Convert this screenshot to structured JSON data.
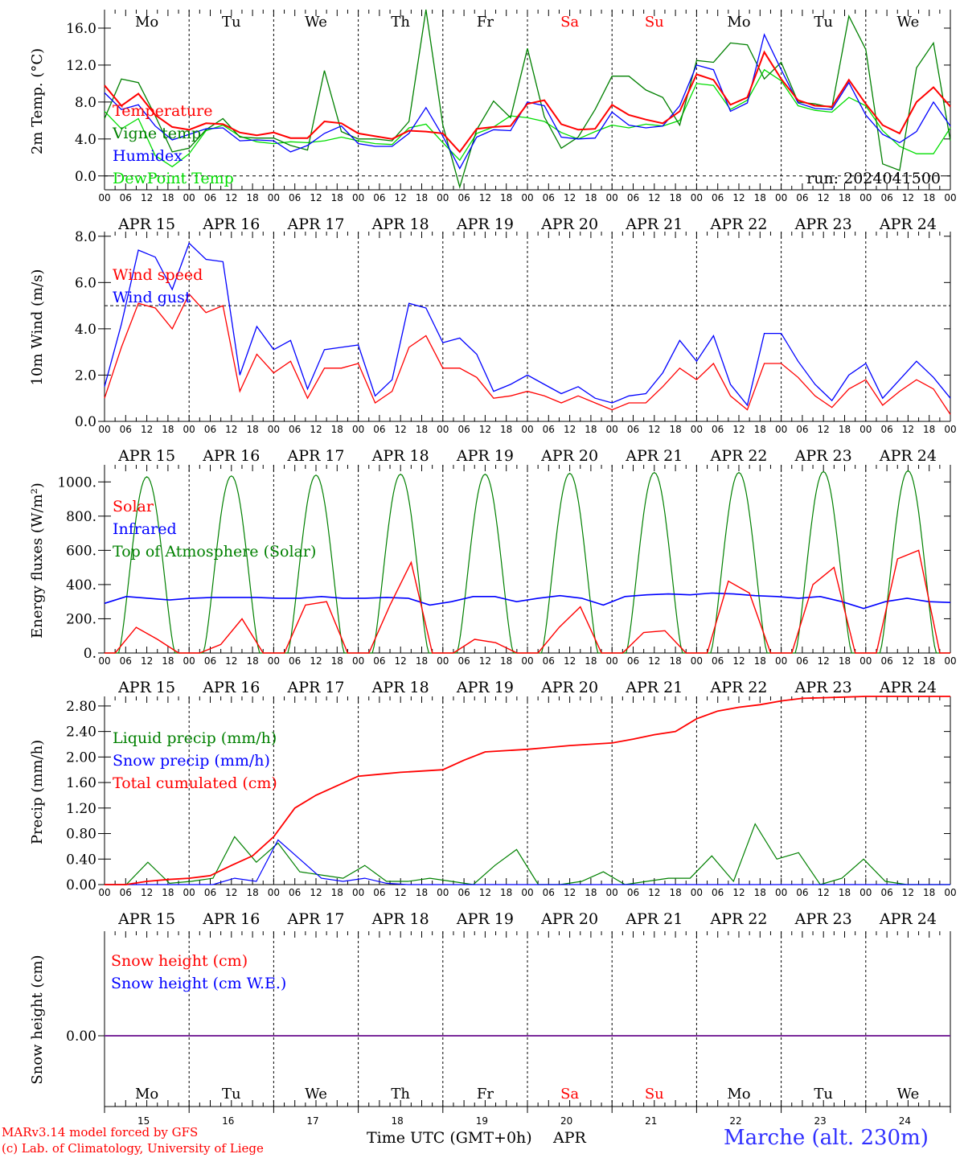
{
  "colors": {
    "red": "#ff0000",
    "green": "#008000",
    "blue": "#0000ff",
    "lightgreen": "#00dd00",
    "purple": "#7a2a9a",
    "black": "#000000",
    "site": "#3030ff"
  },
  "days": [
    "Mo",
    "Tu",
    "We",
    "Th",
    "Fr",
    "Sa",
    "Su",
    "Mo",
    "Tu",
    "We"
  ],
  "weekend_days": [
    "Sa",
    "Su"
  ],
  "dates": [
    "APR 15",
    "APR 16",
    "APR 17",
    "APR 18",
    "APR 19",
    "APR 20",
    "APR 21",
    "APR 22",
    "APR 23",
    "APR 24"
  ],
  "date_numbers": [
    "15",
    "16",
    "17",
    "18",
    "19",
    "20",
    "21",
    "22",
    "23",
    "24"
  ],
  "hour_ticks": [
    "00",
    "06",
    "12",
    "18"
  ],
  "run_label": "run: 2024041500",
  "footer": {
    "credit1": "MARv3.14 model forced by GFS",
    "credit2": "(c) Lab. of Climatology, University of Liege",
    "xaxis": "Time UTC (GMT+0h)",
    "month": "APR",
    "site": "Marche (alt. 230m)"
  },
  "chart_data": [
    {
      "type": "line",
      "ylabel": "2m Temp. (°C)",
      "ylim": [
        -1.5,
        18
      ],
      "yticks": [
        "0.0",
        "4.0",
        "8.0",
        "12.0",
        "16.0"
      ],
      "ytick_values": [
        0,
        4,
        8,
        12,
        16
      ],
      "grid": "vertical dashed at 00 UTC",
      "legend_placement": "top-left",
      "x": "hours since 2024-04-15 00 UTC, every 6 h",
      "series": [
        {
          "name": "Temperature",
          "color": "red",
          "values": [
            9.8,
            7.6,
            8.9,
            6.6,
            5.3,
            5.0,
            5.7,
            5.6,
            4.7,
            4.4,
            4.7,
            4.1,
            4.1,
            5.9,
            5.7,
            4.6,
            4.3,
            4.0,
            4.9,
            4.8,
            4.6,
            2.6,
            5.1,
            5.3,
            5.4,
            7.8,
            8.2,
            5.6,
            5.0,
            5.1,
            7.7,
            6.6,
            6.1,
            5.7,
            7.0,
            11.0,
            10.4,
            7.7,
            8.5,
            13.4,
            10.5,
            8.2,
            7.6,
            7.5,
            10.4,
            7.8,
            5.5,
            4.6,
            8.0,
            9.6,
            7.5
          ]
        },
        {
          "name": "Vigne temp",
          "color": "green",
          "values": [
            6.2,
            10.5,
            10.1,
            6.5,
            2.6,
            3.0,
            5.0,
            6.2,
            4.2,
            4.1,
            4.1,
            3.3,
            2.8,
            11.4,
            4.8,
            4.0,
            4.0,
            3.8,
            5.9,
            18.0,
            5.5,
            -1.2,
            5.0,
            8.1,
            6.3,
            13.8,
            6.4,
            3.0,
            4.2,
            7.2,
            10.8,
            10.8,
            9.3,
            8.5,
            5.5,
            12.5,
            12.3,
            14.4,
            14.2,
            10.5,
            12.3,
            8.0,
            7.8,
            7.4,
            17.3,
            13.7,
            1.3,
            0.6,
            11.7,
            14.4,
            3.8
          ]
        },
        {
          "name": "Humidex",
          "color": "blue",
          "values": [
            9.0,
            7.2,
            7.7,
            5.4,
            3.9,
            4.5,
            5.1,
            5.2,
            3.8,
            3.9,
            3.8,
            2.6,
            3.3,
            4.6,
            5.4,
            3.5,
            3.2,
            3.2,
            4.6,
            7.4,
            4.3,
            0.8,
            4.2,
            5.0,
            4.9,
            8.0,
            7.6,
            4.2,
            4.0,
            4.1,
            6.9,
            5.5,
            5.2,
            5.4,
            7.6,
            12.0,
            11.5,
            7.0,
            7.9,
            15.3,
            11.5,
            7.9,
            7.3,
            7.2,
            10.1,
            6.6,
            4.5,
            3.6,
            4.8,
            8.0,
            5.4
          ]
        },
        {
          "name": "DewPoint Temp",
          "color": "lightgreen",
          "values": [
            7.0,
            5.1,
            6.2,
            2.2,
            1.0,
            2.4,
            4.9,
            5.5,
            4.3,
            3.7,
            3.5,
            3.7,
            3.6,
            3.8,
            4.2,
            3.8,
            3.5,
            3.4,
            5.2,
            5.6,
            3.6,
            1.7,
            4.6,
            5.3,
            6.5,
            6.3,
            5.9,
            4.7,
            4.0,
            4.8,
            5.5,
            5.2,
            5.6,
            5.4,
            6.0,
            10.0,
            9.8,
            7.2,
            8.2,
            11.5,
            10.3,
            7.6,
            7.1,
            6.9,
            8.5,
            7.6,
            4.9,
            3.2,
            2.4,
            2.4,
            5.2
          ]
        }
      ]
    },
    {
      "type": "line",
      "ylabel": "10m Wind (m/s)",
      "ylim": [
        0,
        8.2
      ],
      "yticks": [
        "0.0",
        "2.0",
        "4.0",
        "6.0",
        "8.0"
      ],
      "ytick_values": [
        0,
        2,
        4,
        6,
        8
      ],
      "reference_line": 5.0,
      "legend_placement": "top-left",
      "series": [
        {
          "name": "Wind speed",
          "color": "red",
          "values": [
            1.0,
            3.2,
            5.1,
            4.9,
            4.0,
            5.5,
            4.7,
            5.0,
            1.3,
            2.9,
            2.1,
            2.6,
            1.0,
            2.3,
            2.3,
            2.5,
            0.8,
            1.3,
            3.2,
            3.7,
            2.3,
            2.3,
            1.9,
            1.0,
            1.1,
            1.3,
            1.1,
            0.8,
            1.1,
            0.8,
            0.5,
            0.8,
            0.8,
            1.5,
            2.3,
            1.8,
            2.5,
            1.1,
            0.5,
            2.5,
            2.5,
            1.9,
            1.1,
            0.6,
            1.4,
            1.8,
            0.7,
            1.3,
            1.8,
            1.4,
            0.3
          ]
        },
        {
          "name": "Wind gust",
          "color": "blue",
          "values": [
            1.5,
            4.2,
            7.4,
            7.1,
            5.7,
            7.7,
            7.0,
            6.9,
            2.0,
            4.1,
            3.1,
            3.5,
            1.4,
            3.1,
            3.2,
            3.3,
            1.1,
            1.8,
            5.1,
            4.9,
            3.4,
            3.6,
            2.9,
            1.3,
            1.6,
            2.0,
            1.6,
            1.2,
            1.5,
            1.0,
            0.8,
            1.1,
            1.2,
            2.1,
            3.5,
            2.6,
            3.7,
            1.6,
            0.7,
            3.8,
            3.8,
            2.6,
            1.6,
            0.9,
            2.0,
            2.5,
            1.0,
            1.8,
            2.6,
            1.9,
            1.0
          ]
        }
      ]
    },
    {
      "type": "line",
      "ylabel": "Energy fluxes (W/m²)",
      "ylim": [
        0,
        1100
      ],
      "yticks": [
        "0.",
        "200.",
        "400.",
        "600.",
        "800.",
        "1000."
      ],
      "ytick_values": [
        0,
        200,
        400,
        600,
        800,
        1000
      ],
      "legend_placement": "top-left",
      "series": [
        {
          "name": "Solar",
          "color": "red",
          "values": [
            0,
            150,
            80,
            0,
            0,
            50,
            200,
            0,
            0,
            280,
            300,
            0,
            0,
            280,
            530,
            0,
            0,
            80,
            60,
            0,
            0,
            150,
            270,
            0,
            0,
            120,
            130,
            0,
            0,
            420,
            350,
            0,
            0,
            400,
            500,
            0,
            0,
            550,
            600,
            0
          ]
        },
        {
          "name": "Infrared",
          "color": "blue",
          "values": [
            290,
            330,
            320,
            310,
            320,
            325,
            325,
            325,
            320,
            320,
            330,
            320,
            320,
            325,
            320,
            280,
            300,
            330,
            330,
            300,
            320,
            335,
            320,
            280,
            330,
            340,
            345,
            340,
            350,
            345,
            335,
            330,
            320,
            330,
            300,
            260,
            300,
            320,
            300,
            295
          ]
        },
        {
          "name": "Top of Atmosphere (Solar)",
          "color": "green",
          "peaks": [
            1030,
            1035,
            1040,
            1045,
            1045,
            1050,
            1055,
            1055,
            1060,
            1065
          ]
        }
      ]
    },
    {
      "type": "line",
      "ylabel": "Precip (mm/h)",
      "ylim": [
        0,
        2.95
      ],
      "yticks": [
        "0.00",
        "0.40",
        "0.80",
        "1.20",
        "1.60",
        "2.00",
        "2.40",
        "2.80"
      ],
      "ytick_values": [
        0,
        0.4,
        0.8,
        1.2,
        1.6,
        2.0,
        2.4,
        2.8
      ],
      "legend_placement": "top-left",
      "series": [
        {
          "name": "Liquid precip (mm/h)",
          "color": "green",
          "values": [
            0,
            0,
            0.35,
            0.02,
            0.05,
            0.1,
            0.75,
            0.35,
            0.65,
            0.2,
            0.15,
            0.1,
            0.3,
            0.05,
            0.05,
            0.1,
            0.05,
            0,
            0.3,
            0.55,
            0,
            0,
            0.05,
            0.2,
            0,
            0.05,
            0.1,
            0.1,
            0.45,
            0.05,
            0.95,
            0.4,
            0.5,
            0,
            0.1,
            0.4,
            0.05,
            0,
            0,
            0
          ]
        },
        {
          "name": "Snow precip (mm/h)",
          "color": "blue",
          "values": [
            0,
            0,
            0,
            0,
            0,
            0,
            0.1,
            0.05,
            0.7,
            0.4,
            0.1,
            0.05,
            0.1,
            0.02,
            0,
            0,
            0,
            0,
            0,
            0,
            0,
            0,
            0,
            0,
            0,
            0,
            0,
            0,
            0,
            0,
            0,
            0,
            0,
            0,
            0,
            0,
            0,
            0,
            0,
            0
          ]
        },
        {
          "name": "Total cumulated (cm)",
          "color": "red",
          "values": [
            0,
            0,
            0.05,
            0.08,
            0.1,
            0.14,
            0.3,
            0.45,
            0.75,
            1.2,
            1.4,
            1.55,
            1.7,
            1.73,
            1.76,
            1.78,
            1.8,
            1.95,
            2.08,
            2.1,
            2.12,
            2.15,
            2.18,
            2.2,
            2.22,
            2.28,
            2.35,
            2.4,
            2.6,
            2.72,
            2.78,
            2.82,
            2.88,
            2.92,
            2.93,
            2.94,
            2.95,
            2.95,
            2.95,
            2.95,
            2.95
          ]
        }
      ]
    },
    {
      "type": "line",
      "ylabel": "Snow height (cm)",
      "yticks": [
        "0.00"
      ],
      "ytick_values": [
        0
      ],
      "legend_placement": "top-left",
      "series": [
        {
          "name": "Snow height (cm)",
          "color": "red",
          "values": [
            0,
            0
          ]
        },
        {
          "name": "Snow height (cm W.E.)",
          "color": "blue",
          "values": [
            0,
            0
          ]
        }
      ]
    }
  ]
}
